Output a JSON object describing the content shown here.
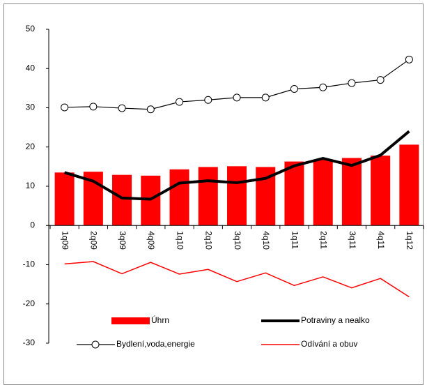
{
  "chart_data": {
    "type": "bar",
    "categories": [
      "1q09",
      "2q09",
      "3q09",
      "4q09",
      "1q10",
      "2q10",
      "3q10",
      "4q10",
      "1q11",
      "2q11",
      "3q11",
      "4q11",
      "1q12"
    ],
    "series": [
      {
        "name": "Úhrn",
        "type": "bar",
        "color": "#ff0000",
        "values": [
          13.5,
          13.7,
          12.9,
          12.7,
          14.3,
          14.9,
          15.1,
          14.9,
          16.3,
          16.8,
          17.2,
          17.8,
          20.6
        ]
      },
      {
        "name": "Potraviny a nealko",
        "type": "line",
        "color": "#000000",
        "line_width": 4,
        "values": [
          13.5,
          11.3,
          7.0,
          6.7,
          10.8,
          11.4,
          10.9,
          12.0,
          15.2,
          17.1,
          15.3,
          17.9,
          24.0
        ]
      },
      {
        "name": "Bydlení,voda,energie",
        "type": "line",
        "color": "#000000",
        "line_width": 1.2,
        "marker": "circle",
        "values": [
          30.1,
          30.3,
          29.9,
          29.6,
          31.5,
          32.0,
          32.6,
          32.6,
          34.8,
          35.2,
          36.3,
          37.1,
          42.3
        ]
      },
      {
        "name": "Odívání a obuv",
        "type": "line",
        "color": "#ff0000",
        "line_width": 1.5,
        "values": [
          -9.8,
          -9.2,
          -12.3,
          -9.4,
          -12.4,
          -11.2,
          -14.3,
          -12.1,
          -15.3,
          -13.1,
          -15.9,
          -13.5,
          -18.2
        ]
      }
    ],
    "ylim": [
      -30,
      50
    ],
    "yticks": [
      -30,
      -20,
      -10,
      0,
      10,
      20,
      30,
      40,
      50
    ],
    "grid": false,
    "legend": "bottom"
  }
}
